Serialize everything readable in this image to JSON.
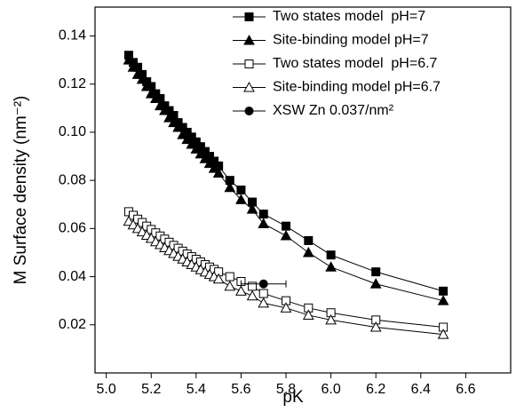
{
  "chart_data": {
    "type": "line",
    "x_label": "pK",
    "y_label": "M Surface density (nm⁻²)",
    "x": [
      5.1,
      5.12,
      5.14,
      5.16,
      5.18,
      5.2,
      5.22,
      5.24,
      5.26,
      5.28,
      5.3,
      5.32,
      5.34,
      5.36,
      5.38,
      5.4,
      5.42,
      5.44,
      5.46,
      5.48,
      5.5,
      5.55,
      5.6,
      5.65,
      5.7,
      5.8,
      5.9,
      6.0,
      6.2,
      6.5
    ],
    "series": [
      {
        "name": "Two states model  pH=7",
        "color": "#000000",
        "marker": "square",
        "filled": true,
        "values": [
          0.132,
          0.129,
          0.127,
          0.124,
          0.121,
          0.119,
          0.116,
          0.114,
          0.111,
          0.109,
          0.107,
          0.104,
          0.102,
          0.1,
          0.098,
          0.096,
          0.094,
          0.092,
          0.09,
          0.088,
          0.086,
          0.08,
          0.076,
          0.071,
          0.066,
          0.061,
          0.055,
          0.049,
          0.042,
          0.034
        ]
      },
      {
        "name": "Site-binding model pH=7",
        "color": "#000000",
        "marker": "triangle",
        "filled": true,
        "values": [
          0.13,
          0.127,
          0.124,
          0.122,
          0.119,
          0.116,
          0.114,
          0.111,
          0.109,
          0.106,
          0.104,
          0.102,
          0.099,
          0.097,
          0.095,
          0.093,
          0.091,
          0.089,
          0.087,
          0.085,
          0.083,
          0.077,
          0.072,
          0.068,
          0.062,
          0.057,
          0.05,
          0.044,
          0.037,
          0.03
        ]
      },
      {
        "name": "Two states model  pH=6.7",
        "color": "#000000",
        "marker": "square",
        "filled": false,
        "values": [
          0.067,
          0.0655,
          0.0639,
          0.0625,
          0.061,
          0.0596,
          0.0582,
          0.0569,
          0.0556,
          0.0543,
          0.053,
          0.0518,
          0.0506,
          0.0494,
          0.0483,
          0.0472,
          0.0461,
          0.045,
          0.044,
          0.043,
          0.042,
          0.04,
          0.038,
          0.036,
          0.033,
          0.03,
          0.027,
          0.025,
          0.022,
          0.019
        ]
      },
      {
        "name": "Site-binding model pH=6.7",
        "color": "#000000",
        "marker": "triangle",
        "filled": false,
        "values": [
          0.063,
          0.0615,
          0.06,
          0.0586,
          0.0572,
          0.0559,
          0.0545,
          0.0533,
          0.052,
          0.0508,
          0.0496,
          0.0484,
          0.0473,
          0.0461,
          0.045,
          0.044,
          0.0429,
          0.0419,
          0.0409,
          0.04,
          0.039,
          0.036,
          0.034,
          0.032,
          0.029,
          0.027,
          0.024,
          0.022,
          0.019,
          0.016
        ]
      },
      {
        "name": "XSW Zn 0.037/nm²",
        "color": "#000000",
        "marker": "circle",
        "filled": true,
        "x": [
          5.7
        ],
        "xerr": [
          0.1
        ],
        "values": [
          0.037
        ]
      }
    ],
    "xlim": [
      4.95,
      6.8
    ],
    "xticks": [
      {
        "value": 5.0,
        "label": "5.0"
      },
      5.2,
      5.4,
      5.6,
      5.8,
      {
        "value": 6.0,
        "label": "6.0"
      },
      6.2,
      6.4,
      6.6
    ],
    "ylim": [
      0.0,
      0.152
    ],
    "yticks": [
      0.02,
      0.04,
      0.06,
      0.08,
      {
        "value": 0.1,
        "label": "0.10"
      },
      0.12,
      0.14
    ],
    "legend": "upper right",
    "grid": false
  }
}
